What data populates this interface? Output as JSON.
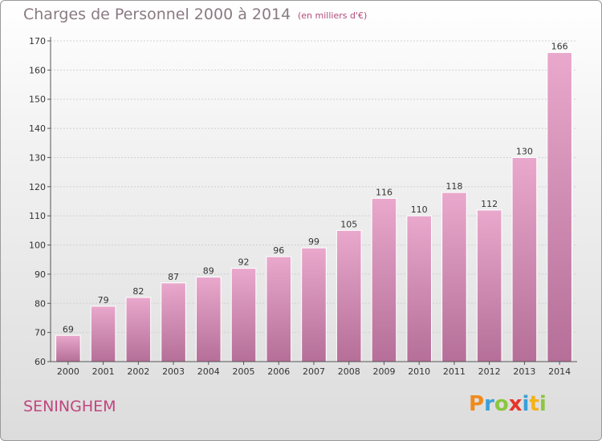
{
  "chart_data": {
    "type": "bar",
    "title": "Charges de Personnel 2000 à 2014",
    "subtitle": "(en milliers d'€)",
    "xlabel": "",
    "ylabel": "",
    "categories": [
      "2000",
      "2001",
      "2002",
      "2003",
      "2004",
      "2005",
      "2006",
      "2007",
      "2008",
      "2009",
      "2010",
      "2011",
      "2012",
      "2013",
      "2014"
    ],
    "values": [
      69,
      79,
      82,
      87,
      89,
      92,
      96,
      99,
      105,
      116,
      110,
      118,
      112,
      130,
      166
    ],
    "ylim": [
      60,
      170
    ],
    "yticks": [
      60,
      70,
      80,
      90,
      100,
      110,
      120,
      130,
      140,
      150,
      160,
      170
    ],
    "grid": true,
    "bar_color": "#d98bb5"
  },
  "footer": {
    "city": "SENINGHEM",
    "logo": {
      "p": "P",
      "r": "r",
      "o": "o",
      "x": "x",
      "i1": "i",
      "t": "t",
      "i2": "i"
    }
  }
}
